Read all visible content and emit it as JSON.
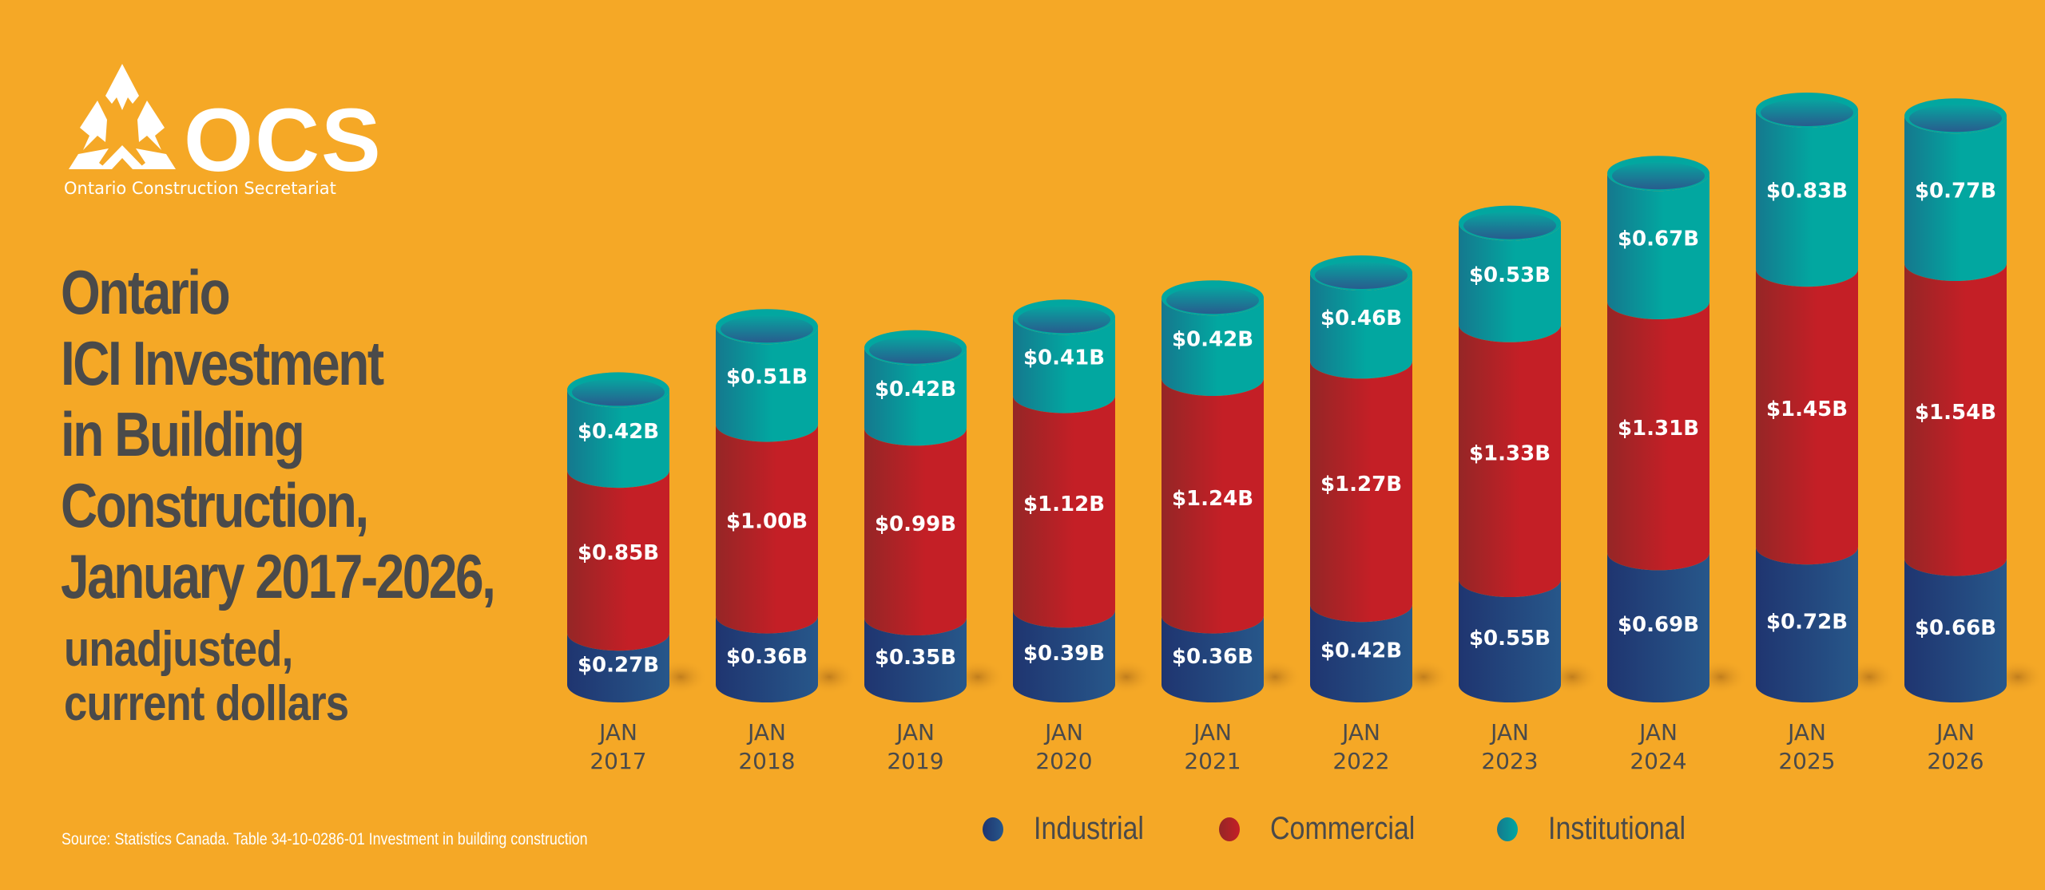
{
  "logo": {
    "text": "OCS",
    "subtitle": "Ontario Construction Secretariat",
    "icon": "ocs-triangle-logo-icon"
  },
  "title": {
    "lines": [
      "Ontario",
      "ICI Investment",
      "in Building",
      "Construction,",
      "January 2017-2026,"
    ],
    "sub_lines": [
      "unadjusted,",
      "current dollars"
    ]
  },
  "source": "Source: Statistics Canada. Table 34-10-0286-01  Investment in building construction",
  "colors": {
    "background": "#F5A826",
    "industrial": "#24427A",
    "commercial": "#C01E26",
    "institutional": "#02A7A0",
    "text_dark": "#4A4A4A"
  },
  "chart_data": {
    "type": "bar",
    "stacked": true,
    "style": "3d-cylinder",
    "title": "Ontario ICI Investment in Building Construction, January 2017-2026, unadjusted, current dollars",
    "xlabel": "",
    "ylabel": "",
    "units": "$ billions",
    "categories": [
      [
        "JAN",
        "2017"
      ],
      [
        "JAN",
        "2018"
      ],
      [
        "JAN",
        "2019"
      ],
      [
        "JAN",
        "2020"
      ],
      [
        "JAN",
        "2021"
      ],
      [
        "JAN",
        "2022"
      ],
      [
        "JAN",
        "2023"
      ],
      [
        "JAN",
        "2024"
      ],
      [
        "JAN",
        "2025"
      ],
      [
        "JAN",
        "2026"
      ]
    ],
    "series": [
      {
        "name": "Industrial",
        "key": "industrial",
        "values": [
          0.27,
          0.36,
          0.35,
          0.39,
          0.36,
          0.42,
          0.55,
          0.69,
          0.72,
          0.66
        ],
        "labels": [
          "$0.27B",
          "$0.36B",
          "$0.35B",
          "$0.39B",
          "$0.36B",
          "$0.42B",
          "$0.55B",
          "$0.69B",
          "$0.72B",
          "$0.66B"
        ]
      },
      {
        "name": "Commercial",
        "key": "commercial",
        "values": [
          0.85,
          1.0,
          0.99,
          1.12,
          1.24,
          1.27,
          1.33,
          1.31,
          1.45,
          1.54
        ],
        "labels": [
          "$0.85B",
          "$1.00B",
          "$0.99B",
          "$1.12B",
          "$1.24B",
          "$1.27B",
          "$1.33B",
          "$1.31B",
          "$1.45B",
          "$1.54B"
        ]
      },
      {
        "name": "Institutional",
        "key": "institutional",
        "values": [
          0.42,
          0.51,
          0.42,
          0.41,
          0.42,
          0.46,
          0.53,
          0.67,
          0.83,
          0.77
        ],
        "labels": [
          "$0.42B",
          "$0.51B",
          "$0.42B",
          "$0.41B",
          "$0.42B",
          "$0.46B",
          "$0.53B",
          "$0.67B",
          "$0.83B",
          "$0.77B"
        ]
      }
    ],
    "ylim": [
      0,
      3.2
    ],
    "grid": false,
    "legend": {
      "position": "bottom-right",
      "entries": [
        "Industrial",
        "Commercial",
        "Institutional"
      ]
    }
  }
}
